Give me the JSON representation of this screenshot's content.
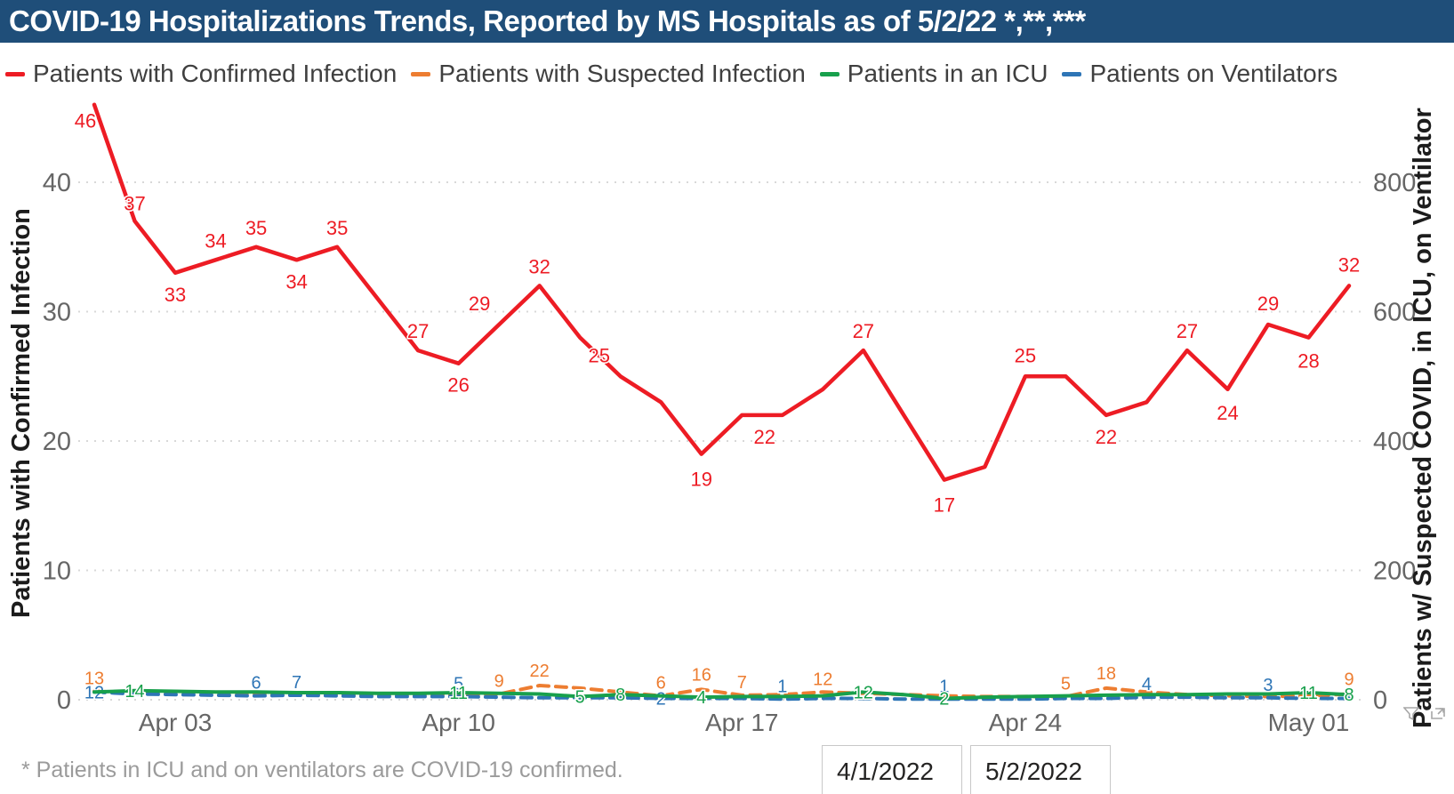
{
  "title": {
    "text": "COVID-19 Hospitalizations Trends, Reported by MS Hospitals as of 5/2/22 *,**,***",
    "bg_color": "#1F4E79",
    "text_color": "#FFFFFF"
  },
  "legend": {
    "items": [
      {
        "label": "Patients with Confirmed Infection",
        "color": "#ED1C24"
      },
      {
        "label": "Patients with Suspected Infection",
        "color": "#ED7D31"
      },
      {
        "label": "Patients in an ICU",
        "color": "#18A04C"
      },
      {
        "label": "Patients on Ventilators",
        "color": "#2E75B6"
      }
    ]
  },
  "footnote": "* Patients in ICU and on ventilators are COVID-19 confirmed.",
  "slicer": {
    "start_value": "4/1/2022",
    "end_value": "5/2/2022"
  },
  "visual_header_icons": [
    "filter-funnel-icon",
    "focus-mode-icon"
  ],
  "chart_data": {
    "type": "line",
    "x_dates": [
      "Apr 01",
      "Apr 02",
      "Apr 03",
      "Apr 04",
      "Apr 05",
      "Apr 06",
      "Apr 07",
      "Apr 08",
      "Apr 09",
      "Apr 10",
      "Apr 11",
      "Apr 12",
      "Apr 13",
      "Apr 14",
      "Apr 15",
      "Apr 16",
      "Apr 17",
      "Apr 18",
      "Apr 19",
      "Apr 20",
      "Apr 21",
      "Apr 22",
      "Apr 23",
      "Apr 24",
      "Apr 25",
      "Apr 26",
      "Apr 27",
      "Apr 28",
      "Apr 29",
      "Apr 30",
      "May 01",
      "May 02"
    ],
    "x_ticks": [
      {
        "index": 2,
        "label": "Apr 03"
      },
      {
        "index": 9,
        "label": "Apr 10"
      },
      {
        "index": 16,
        "label": "Apr 17"
      },
      {
        "index": 23,
        "label": "Apr 24"
      },
      {
        "index": 30,
        "label": "May 01"
      }
    ],
    "left_axis": {
      "title": "Patients with Confirmed Infection",
      "ticks": [
        0,
        10,
        20,
        30,
        40
      ],
      "range": [
        0,
        46.5
      ],
      "grid": "dotted"
    },
    "right_axis": {
      "title": "Patients w/ Suspected COVID, in ICU, on Ventilator",
      "ticks": [
        0,
        200,
        400,
        600,
        800
      ],
      "range": [
        0,
        930
      ]
    },
    "series": [
      {
        "key": "suspected",
        "name": "Patients with Suspected Infection",
        "color": "#ED7D31",
        "axis": "right",
        "style": "dashed",
        "values": [
          13,
          11,
          12,
          11,
          10,
          9,
          8,
          8,
          8,
          8,
          9,
          22,
          18,
          12,
          6,
          16,
          7,
          8,
          12,
          10,
          8,
          6,
          5,
          5,
          5,
          18,
          12,
          8,
          6,
          5,
          6,
          9
        ],
        "labels": [
          {
            "i": 0,
            "dy": -8
          },
          {
            "i": 10,
            "dy": -8
          },
          {
            "i": 11,
            "dy": -10
          },
          {
            "i": 14,
            "dy": -8
          },
          {
            "i": 15,
            "dy": -10
          },
          {
            "i": 16,
            "dy": -8
          },
          {
            "i": 18,
            "dy": -8
          },
          {
            "i": 24,
            "dy": -8
          },
          {
            "i": 25,
            "dy": -10
          },
          {
            "i": 31,
            "dy": -10
          }
        ]
      },
      {
        "key": "ventilators",
        "name": "Patients on Ventilators",
        "color": "#2E75B6",
        "axis": "right",
        "style": "dashed",
        "values": [
          12,
          9,
          8,
          7,
          6,
          7,
          6,
          5,
          5,
          5,
          4,
          3,
          3,
          3,
          2,
          2,
          2,
          1,
          2,
          2,
          1,
          1,
          1,
          1,
          2,
          2,
          4,
          4,
          3,
          3,
          2,
          2
        ],
        "labels": [
          {
            "i": 0,
            "dy": 7
          },
          {
            "i": 4,
            "dy": -8
          },
          {
            "i": 5,
            "dy": -8
          },
          {
            "i": 9,
            "dy": -8
          },
          {
            "i": 14,
            "dy": 7
          },
          {
            "i": 17,
            "dy": -8
          },
          {
            "i": 21,
            "dy": -8
          },
          {
            "i": 26,
            "dy": -8
          },
          {
            "i": 29,
            "dy": -8
          }
        ]
      },
      {
        "key": "icu",
        "name": "Patients in an ICU",
        "color": "#18A04C",
        "axis": "right",
        "style": "solid",
        "values": [
          12,
          14,
          13,
          12,
          12,
          11,
          11,
          10,
          10,
          11,
          10,
          9,
          5,
          8,
          6,
          4,
          5,
          5,
          6,
          12,
          8,
          2,
          4,
          5,
          6,
          7,
          8,
          8,
          9,
          9,
          11,
          8
        ],
        "labels": [
          {
            "i": 1,
            "dy": 7
          },
          {
            "i": 9,
            "dy": 7
          },
          {
            "i": 12,
            "dy": 7
          },
          {
            "i": 13,
            "dy": 7
          },
          {
            "i": 15,
            "dy": 7
          },
          {
            "i": 19,
            "dy": 7
          },
          {
            "i": 21,
            "dy": 7
          },
          {
            "i": 30,
            "dy": 7
          },
          {
            "i": 31,
            "dy": 7
          }
        ]
      },
      {
        "key": "confirmed",
        "name": "Patients with Confirmed Infection",
        "color": "#ED1C24",
        "axis": "left",
        "style": "solid",
        "values": [
          46,
          37,
          33,
          34,
          35,
          34,
          35,
          31,
          27,
          26,
          29,
          32,
          28,
          25,
          23,
          19,
          22,
          22,
          24,
          27,
          22,
          17,
          18,
          25,
          25,
          22,
          23,
          27,
          24,
          29,
          28,
          32
        ],
        "labels": [
          {
            "i": 0,
            "dx": -10,
            "dy": 26
          },
          {
            "i": 1,
            "dy": -12
          },
          {
            "i": 2,
            "dy": 32
          },
          {
            "i": 3,
            "dy": -14
          },
          {
            "i": 4,
            "dy": -14
          },
          {
            "i": 5,
            "dy": 32
          },
          {
            "i": 6,
            "dy": -14
          },
          {
            "i": 8,
            "dy": -14
          },
          {
            "i": 9,
            "dy": 32
          },
          {
            "i": 10,
            "dx": -22,
            "dy": -16
          },
          {
            "i": 11,
            "dy": -14
          },
          {
            "i": 13,
            "dx": -24,
            "dy": -16
          },
          {
            "i": 15,
            "dy": 36
          },
          {
            "i": 17,
            "dx": -20,
            "dy": 32
          },
          {
            "i": 19,
            "dy": -14
          },
          {
            "i": 21,
            "dy": 36
          },
          {
            "i": 23,
            "dy": -16
          },
          {
            "i": 25,
            "dy": 32
          },
          {
            "i": 27,
            "dy": -14
          },
          {
            "i": 28,
            "dy": 34
          },
          {
            "i": 29,
            "dy": -16
          },
          {
            "i": 30,
            "dy": 34
          },
          {
            "i": 31,
            "dy": -16
          }
        ]
      }
    ]
  }
}
